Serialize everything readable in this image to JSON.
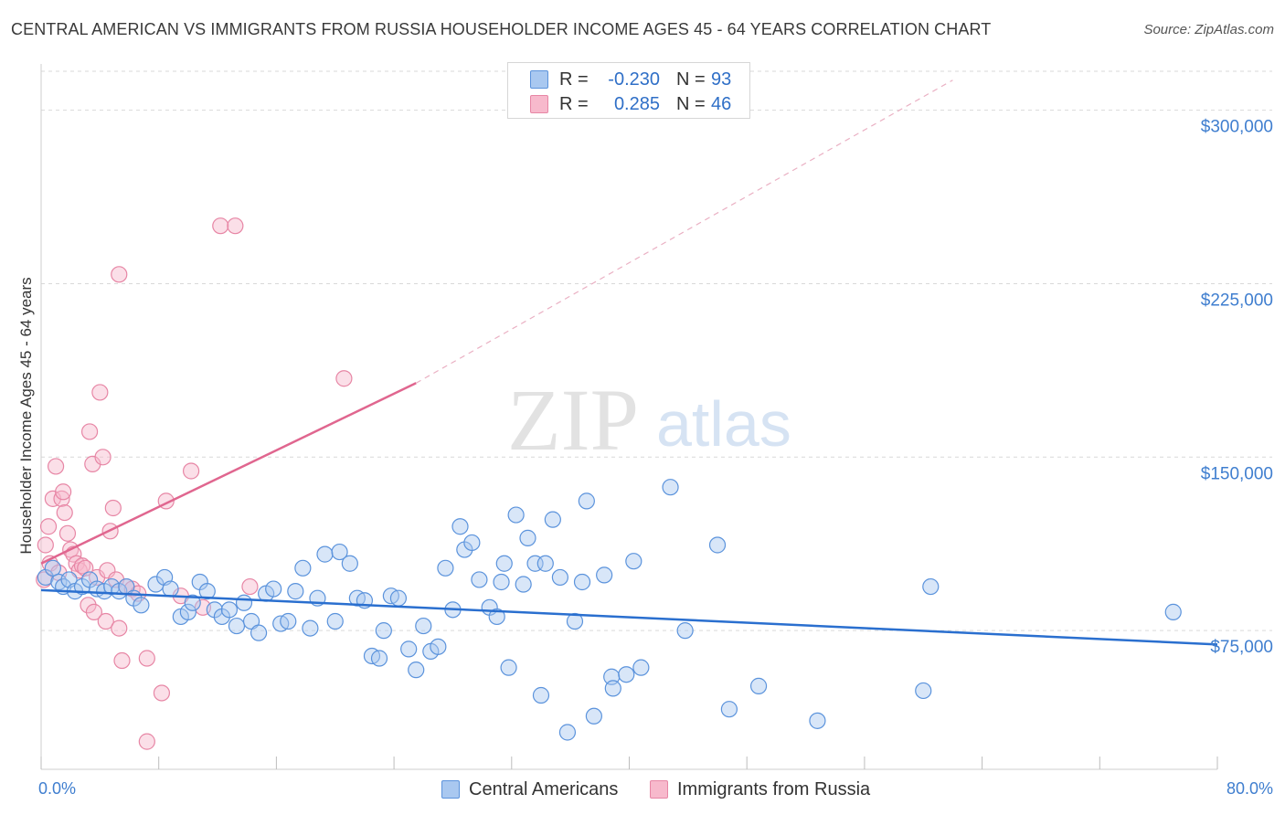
{
  "title": "CENTRAL AMERICAN VS IMMIGRANTS FROM RUSSIA HOUSEHOLDER INCOME AGES 45 - 64 YEARS CORRELATION CHART",
  "source": "Source: ZipAtlas.com",
  "watermark": {
    "zip": "ZIP",
    "atlas": "atlas"
  },
  "legend": {
    "rows": [
      {
        "r_label": "R =",
        "r_value": "-0.230",
        "n_label": "N =",
        "n_value": "93"
      },
      {
        "r_label": "R =",
        "r_value": "0.285",
        "n_label": "N =",
        "n_value": "46"
      }
    ]
  },
  "bottom_legend": {
    "series1": "Central Americans",
    "series2": "Immigrants from Russia"
  },
  "colors": {
    "blue_fill": "#a9c8f0",
    "blue_stroke": "#5b93dc",
    "blue_line": "#2a6fcf",
    "pink_fill": "#f7b9cc",
    "pink_stroke": "#e786a5",
    "pink_line": "#e0668f",
    "tick_text": "#3f7ecf",
    "grid": "#d9d9d9"
  },
  "chart_data": {
    "type": "scatter",
    "title": "CENTRAL AMERICAN VS IMMIGRANTS FROM RUSSIA HOUSEHOLDER INCOME AGES 45 - 64 YEARS CORRELATION CHART",
    "xlabel": "",
    "ylabel": "Householder Income Ages 45 - 64 years",
    "xlim": [
      0,
      80
    ],
    "ylim": [
      15000,
      320000
    ],
    "x_tick_labels": [
      "0.0%",
      "80.0%"
    ],
    "y_ticks": [
      75000,
      150000,
      225000,
      300000
    ],
    "y_tick_labels": [
      "$75,000",
      "$150,000",
      "$225,000",
      "$300,000"
    ],
    "grid": true,
    "series": [
      {
        "name": "Central Americans",
        "r": -0.23,
        "n": 93,
        "trend": {
          "x": [
            0,
            80
          ],
          "y": [
            92500,
            69000
          ],
          "dashed_extension": false
        },
        "points": [
          {
            "x": 0.3,
            "y": 98000
          },
          {
            "x": 0.8,
            "y": 102000
          },
          {
            "x": 1.2,
            "y": 96000
          },
          {
            "x": 1.5,
            "y": 94000
          },
          {
            "x": 1.9,
            "y": 97000
          },
          {
            "x": 2.3,
            "y": 92000
          },
          {
            "x": 2.8,
            "y": 94000
          },
          {
            "x": 3.3,
            "y": 97000
          },
          {
            "x": 3.8,
            "y": 93000
          },
          {
            "x": 4.3,
            "y": 92000
          },
          {
            "x": 4.8,
            "y": 94000
          },
          {
            "x": 5.3,
            "y": 92000
          },
          {
            "x": 5.8,
            "y": 94000
          },
          {
            "x": 6.3,
            "y": 89000
          },
          {
            "x": 6.8,
            "y": 86000
          },
          {
            "x": 7.8,
            "y": 95000
          },
          {
            "x": 8.4,
            "y": 98000
          },
          {
            "x": 8.8,
            "y": 93000
          },
          {
            "x": 9.5,
            "y": 81000
          },
          {
            "x": 10.0,
            "y": 83000
          },
          {
            "x": 10.3,
            "y": 87000
          },
          {
            "x": 10.8,
            "y": 96000
          },
          {
            "x": 11.3,
            "y": 92000
          },
          {
            "x": 11.8,
            "y": 84000
          },
          {
            "x": 12.3,
            "y": 81000
          },
          {
            "x": 12.8,
            "y": 84000
          },
          {
            "x": 13.3,
            "y": 77000
          },
          {
            "x": 13.8,
            "y": 87000
          },
          {
            "x": 14.3,
            "y": 79000
          },
          {
            "x": 14.8,
            "y": 74000
          },
          {
            "x": 15.3,
            "y": 91000
          },
          {
            "x": 15.8,
            "y": 93000
          },
          {
            "x": 16.3,
            "y": 78000
          },
          {
            "x": 16.8,
            "y": 79000
          },
          {
            "x": 17.3,
            "y": 92000
          },
          {
            "x": 17.8,
            "y": 102000
          },
          {
            "x": 18.3,
            "y": 76000
          },
          {
            "x": 18.8,
            "y": 89000
          },
          {
            "x": 19.3,
            "y": 108000
          },
          {
            "x": 20.0,
            "y": 79000
          },
          {
            "x": 20.3,
            "y": 109000
          },
          {
            "x": 21.0,
            "y": 104000
          },
          {
            "x": 21.5,
            "y": 89000
          },
          {
            "x": 22.0,
            "y": 88000
          },
          {
            "x": 22.5,
            "y": 64000
          },
          {
            "x": 23.0,
            "y": 63000
          },
          {
            "x": 23.3,
            "y": 75000
          },
          {
            "x": 23.8,
            "y": 90000
          },
          {
            "x": 24.3,
            "y": 89000
          },
          {
            "x": 25.0,
            "y": 67000
          },
          {
            "x": 25.5,
            "y": 58000
          },
          {
            "x": 26.0,
            "y": 77000
          },
          {
            "x": 26.5,
            "y": 66000
          },
          {
            "x": 27.0,
            "y": 68000
          },
          {
            "x": 27.5,
            "y": 102000
          },
          {
            "x": 28.0,
            "y": 84000
          },
          {
            "x": 28.5,
            "y": 120000
          },
          {
            "x": 28.8,
            "y": 110000
          },
          {
            "x": 29.3,
            "y": 113000
          },
          {
            "x": 29.8,
            "y": 97000
          },
          {
            "x": 30.5,
            "y": 85000
          },
          {
            "x": 31.0,
            "y": 81000
          },
          {
            "x": 31.3,
            "y": 96000
          },
          {
            "x": 31.8,
            "y": 59000
          },
          {
            "x": 32.3,
            "y": 125000
          },
          {
            "x": 32.8,
            "y": 95000
          },
          {
            "x": 33.1,
            "y": 115000
          },
          {
            "x": 33.6,
            "y": 104000
          },
          {
            "x": 34.3,
            "y": 104000
          },
          {
            "x": 34.8,
            "y": 123000
          },
          {
            "x": 35.3,
            "y": 98000
          },
          {
            "x": 35.8,
            "y": 31000
          },
          {
            "x": 36.3,
            "y": 79000
          },
          {
            "x": 36.8,
            "y": 96000
          },
          {
            "x": 37.1,
            "y": 131000
          },
          {
            "x": 37.6,
            "y": 38000
          },
          {
            "x": 38.8,
            "y": 55000
          },
          {
            "x": 38.3,
            "y": 99000
          },
          {
            "x": 38.9,
            "y": 50000
          },
          {
            "x": 39.8,
            "y": 56000
          },
          {
            "x": 40.3,
            "y": 105000
          },
          {
            "x": 40.8,
            "y": 59000
          },
          {
            "x": 42.8,
            "y": 137000
          },
          {
            "x": 43.8,
            "y": 75000
          },
          {
            "x": 46.0,
            "y": 112000
          },
          {
            "x": 46.8,
            "y": 41000
          },
          {
            "x": 48.8,
            "y": 51000
          },
          {
            "x": 52.8,
            "y": 36000
          },
          {
            "x": 60.0,
            "y": 49000
          },
          {
            "x": 60.5,
            "y": 94000
          },
          {
            "x": 77.0,
            "y": 83000
          },
          {
            "x": 34.0,
            "y": 47000
          },
          {
            "x": 31.5,
            "y": 104000
          }
        ]
      },
      {
        "name": "Immigrants from Russia",
        "r": 0.285,
        "n": 46,
        "trend": {
          "x": [
            0,
            25.5
          ],
          "y": [
            104000,
            182000
          ],
          "dashed_extension_to": {
            "x": 62,
            "y": 313000
          }
        },
        "points": [
          {
            "x": 0.2,
            "y": 97000
          },
          {
            "x": 0.3,
            "y": 112000
          },
          {
            "x": 0.5,
            "y": 120000
          },
          {
            "x": 0.6,
            "y": 104000
          },
          {
            "x": 0.8,
            "y": 132000
          },
          {
            "x": 1.0,
            "y": 146000
          },
          {
            "x": 1.2,
            "y": 100000
          },
          {
            "x": 1.4,
            "y": 132000
          },
          {
            "x": 1.5,
            "y": 135000
          },
          {
            "x": 1.6,
            "y": 126000
          },
          {
            "x": 1.8,
            "y": 117000
          },
          {
            "x": 2.0,
            "y": 110000
          },
          {
            "x": 2.2,
            "y": 108000
          },
          {
            "x": 2.4,
            "y": 104000
          },
          {
            "x": 2.6,
            "y": 101000
          },
          {
            "x": 2.8,
            "y": 103000
          },
          {
            "x": 3.0,
            "y": 102000
          },
          {
            "x": 3.2,
            "y": 86000
          },
          {
            "x": 3.3,
            "y": 161000
          },
          {
            "x": 3.5,
            "y": 147000
          },
          {
            "x": 3.6,
            "y": 83000
          },
          {
            "x": 3.8,
            "y": 98000
          },
          {
            "x": 4.0,
            "y": 178000
          },
          {
            "x": 4.2,
            "y": 150000
          },
          {
            "x": 4.4,
            "y": 79000
          },
          {
            "x": 4.5,
            "y": 101000
          },
          {
            "x": 4.7,
            "y": 118000
          },
          {
            "x": 4.9,
            "y": 128000
          },
          {
            "x": 5.1,
            "y": 97000
          },
          {
            "x": 5.3,
            "y": 229000
          },
          {
            "x": 5.3,
            "y": 76000
          },
          {
            "x": 5.5,
            "y": 62000
          },
          {
            "x": 5.8,
            "y": 94000
          },
          {
            "x": 6.2,
            "y": 93000
          },
          {
            "x": 6.6,
            "y": 91000
          },
          {
            "x": 7.2,
            "y": 63000
          },
          {
            "x": 7.2,
            "y": 27000
          },
          {
            "x": 8.2,
            "y": 48000
          },
          {
            "x": 8.5,
            "y": 131000
          },
          {
            "x": 9.5,
            "y": 90000
          },
          {
            "x": 10.2,
            "y": 144000
          },
          {
            "x": 11.0,
            "y": 85000
          },
          {
            "x": 12.2,
            "y": 250000
          },
          {
            "x": 13.2,
            "y": 250000
          },
          {
            "x": 14.2,
            "y": 94000
          },
          {
            "x": 20.6,
            "y": 184000
          }
        ]
      }
    ]
  }
}
